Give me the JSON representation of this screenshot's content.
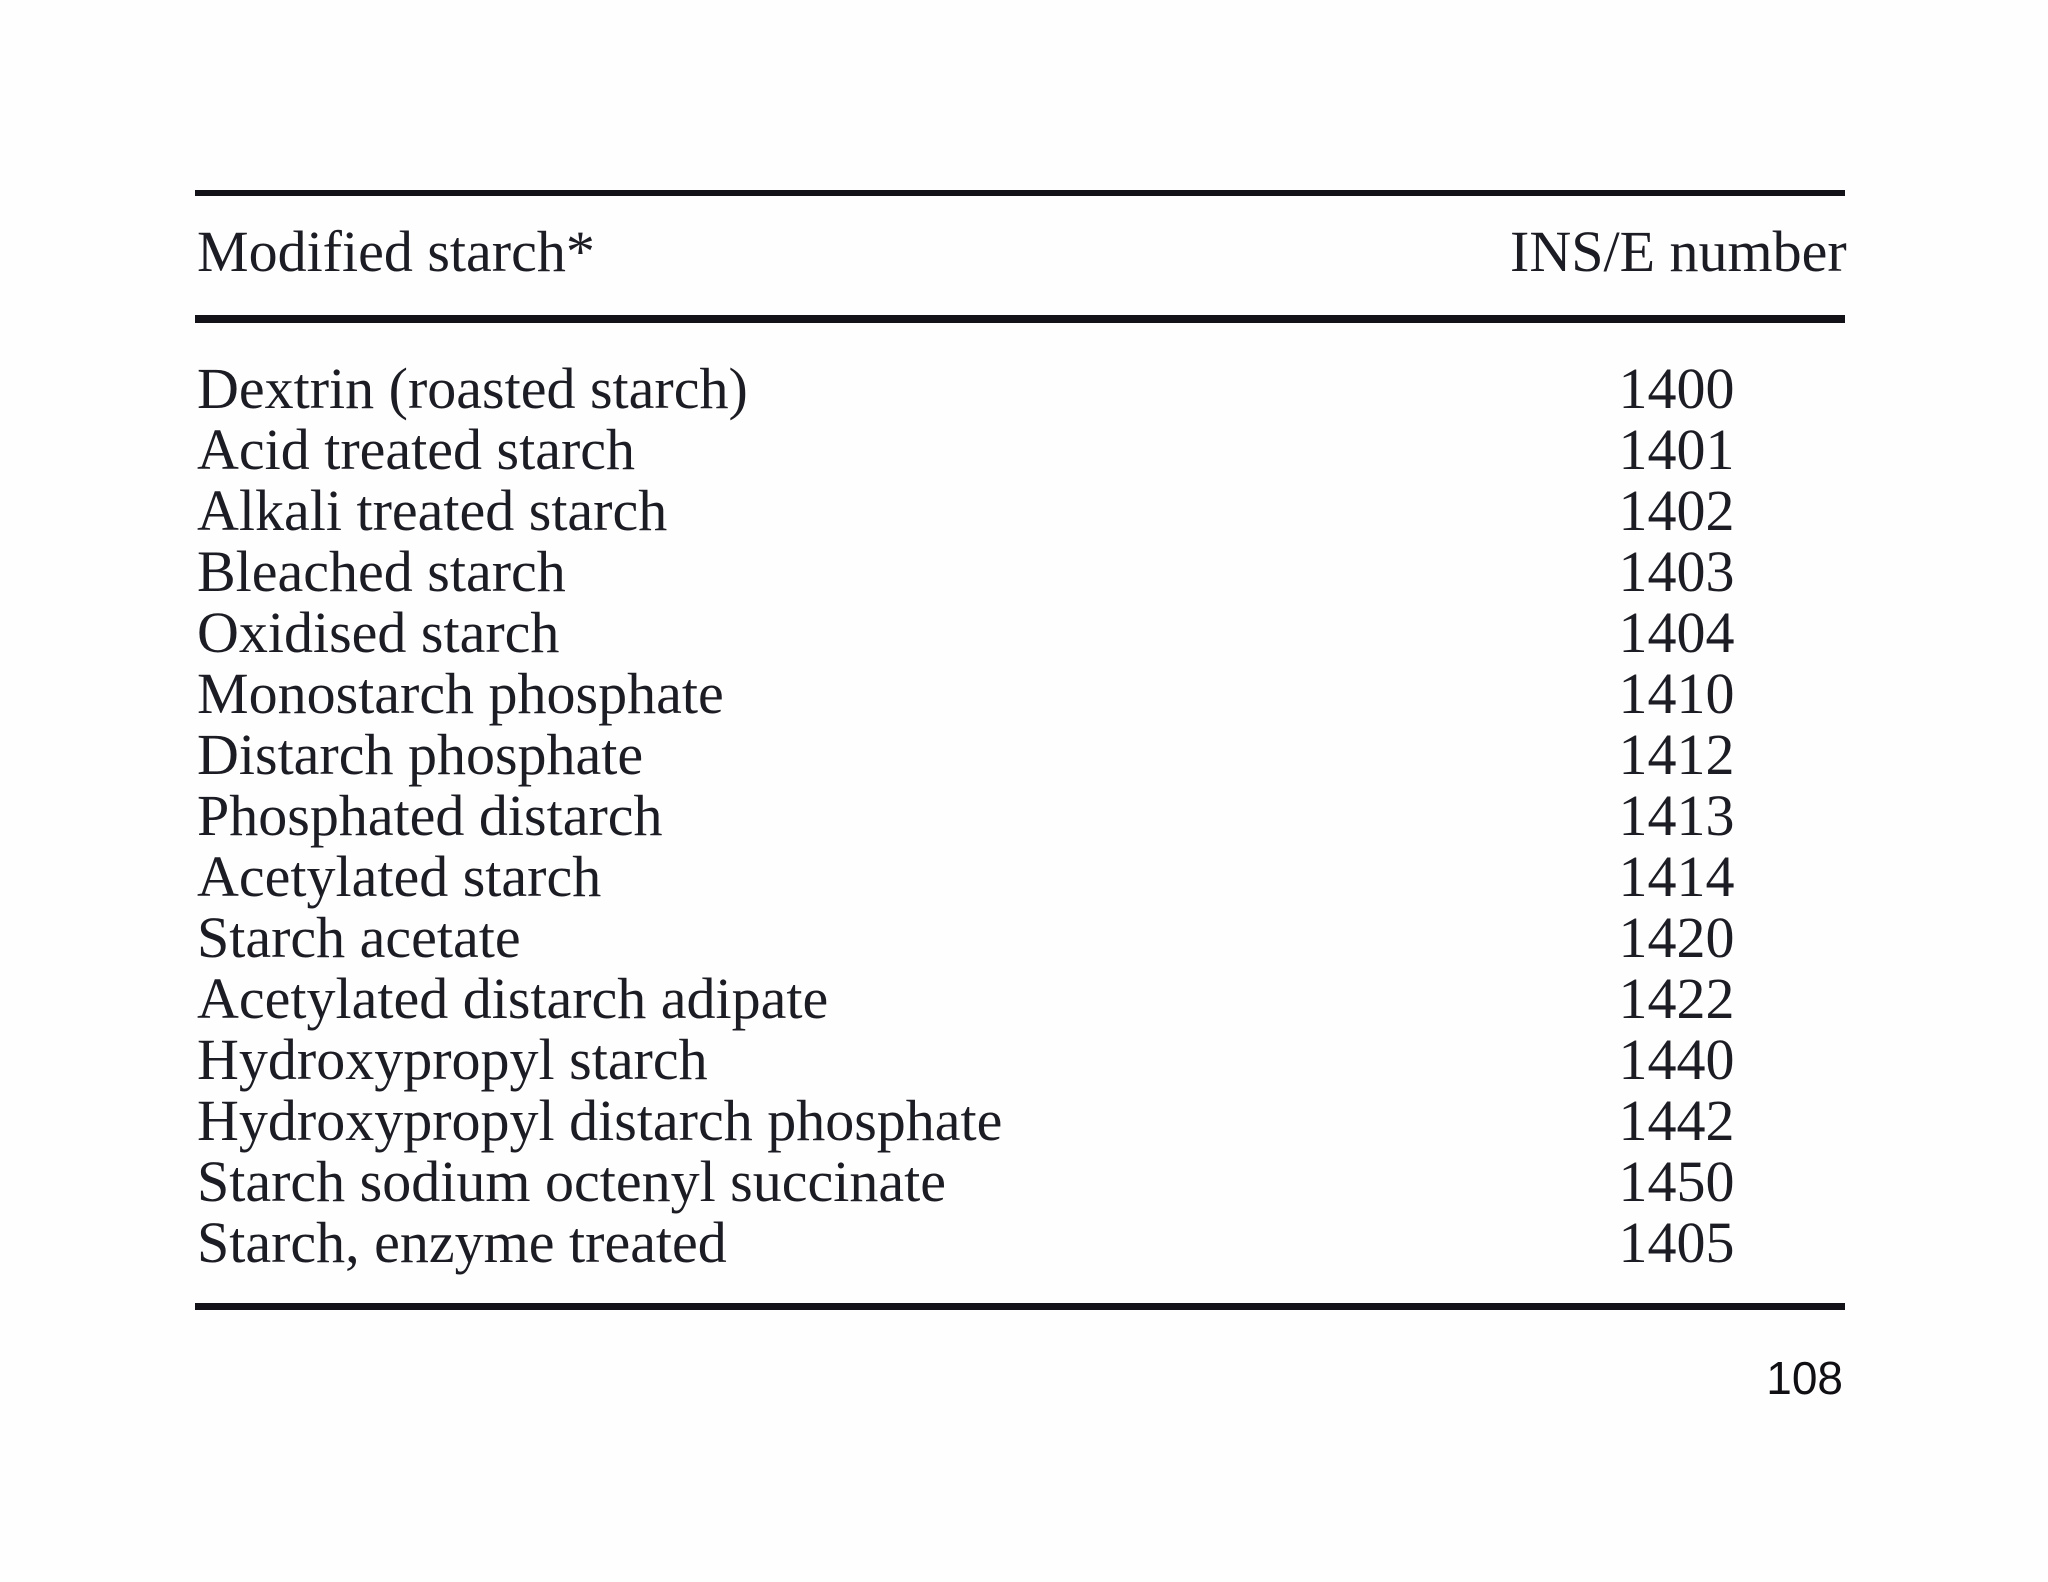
{
  "page_number": "108",
  "table": {
    "col1_header": "Modified starch*",
    "col2_header": "INS/E number",
    "rows": [
      {
        "name": "Dextrin (roasted starch)",
        "ins": "1400"
      },
      {
        "name": "Acid treated starch",
        "ins": "1401"
      },
      {
        "name": "Alkali treated starch",
        "ins": "1402"
      },
      {
        "name": "Bleached starch",
        "ins": "1403"
      },
      {
        "name": "Oxidised starch",
        "ins": "1404"
      },
      {
        "name": "Monostarch phosphate",
        "ins": "1410"
      },
      {
        "name": "Distarch phosphate",
        "ins": "1412"
      },
      {
        "name": "Phosphated distarch",
        "ins": "1413"
      },
      {
        "name": "Acetylated starch",
        "ins": "1414"
      },
      {
        "name": "Starch acetate",
        "ins": "1420"
      },
      {
        "name": "Acetylated distarch adipate",
        "ins": "1422"
      },
      {
        "name": "Hydroxypropyl starch",
        "ins": "1440"
      },
      {
        "name": "Hydroxypropyl distarch phosphate",
        "ins": "1442"
      },
      {
        "name": "Starch sodium octenyl succinate",
        "ins": "1450"
      },
      {
        "name": "Starch, enzyme treated",
        "ins": "1405"
      }
    ]
  },
  "colors": {
    "text": "#1c1c24",
    "rule": "#121218",
    "background": "#fefefe"
  }
}
